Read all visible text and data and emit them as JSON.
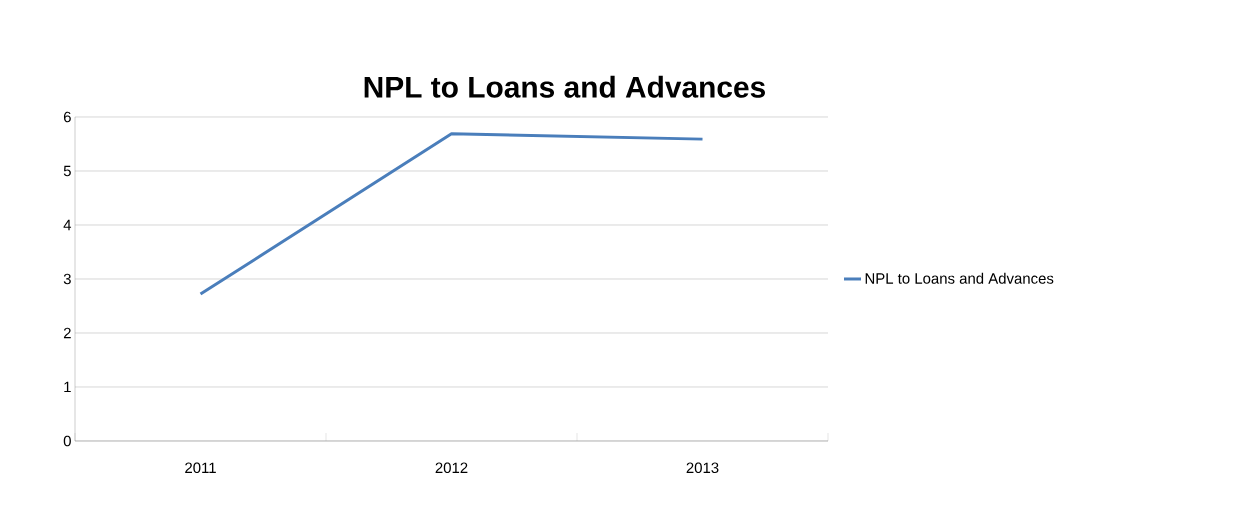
{
  "chart_data": {
    "type": "line",
    "title": "NPL to Loans and Advances",
    "categories": [
      "2011",
      "2012",
      "2013"
    ],
    "series": [
      {
        "name": "NPL to Loans and Advances",
        "color": "#4a7ebb",
        "values": [
          2.72,
          5.69,
          5.59
        ]
      }
    ],
    "ylim": [
      0,
      6
    ],
    "yticks": [
      0,
      1,
      2,
      3,
      4,
      5,
      6
    ],
    "grid": "y",
    "legend": "right",
    "marker": "none",
    "line_style": "solid"
  }
}
